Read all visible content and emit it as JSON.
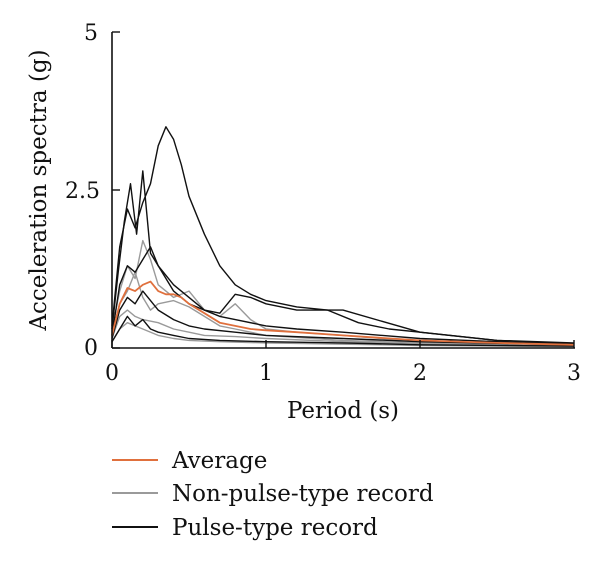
{
  "chart_data": {
    "type": "line",
    "xlabel": "Period (s)",
    "ylabel": "Acceleration spectra (g)",
    "xlim": [
      0,
      3
    ],
    "ylim": [
      0,
      5
    ],
    "x_ticks": [
      "0",
      "1",
      "2",
      "3"
    ],
    "y_ticks": [
      "0",
      "2.5",
      "5"
    ],
    "grid": false,
    "legend_position": "bottom-left below plot",
    "legend": [
      {
        "label": "Average",
        "color": "#e0703d"
      },
      {
        "label": "Non-pulse-type record",
        "color": "#9a9a9a"
      },
      {
        "label": "Pulse-type record",
        "color": "#111111"
      }
    ],
    "series": [
      {
        "group": "pulse",
        "color": "#111111",
        "x": [
          0,
          0.05,
          0.1,
          0.15,
          0.2,
          0.25,
          0.3,
          0.35,
          0.4,
          0.45,
          0.5,
          0.6,
          0.7,
          0.8,
          0.9,
          1.0,
          1.2,
          1.4,
          1.6,
          1.8,
          2.0,
          2.5,
          3.0
        ],
        "y": [
          0.35,
          1.6,
          2.2,
          1.9,
          2.3,
          2.6,
          3.2,
          3.5,
          3.3,
          2.9,
          2.4,
          1.8,
          1.3,
          1.0,
          0.85,
          0.75,
          0.65,
          0.6,
          0.4,
          0.3,
          0.25,
          0.12,
          0.08
        ]
      },
      {
        "group": "pulse",
        "color": "#111111",
        "x": [
          0,
          0.04,
          0.08,
          0.12,
          0.16,
          0.2,
          0.25,
          0.3,
          0.4,
          0.5,
          0.6,
          0.7,
          0.8,
          0.9,
          1.0,
          1.2,
          1.5,
          2.0,
          2.5,
          3.0
        ],
        "y": [
          0.3,
          1.2,
          2.0,
          2.6,
          1.8,
          2.8,
          1.5,
          1.3,
          1.0,
          0.8,
          0.6,
          0.55,
          0.85,
          0.8,
          0.7,
          0.6,
          0.6,
          0.25,
          0.12,
          0.06
        ]
      },
      {
        "group": "pulse",
        "color": "#111111",
        "x": [
          0,
          0.05,
          0.1,
          0.15,
          0.2,
          0.25,
          0.3,
          0.4,
          0.5,
          0.6,
          0.7,
          0.8,
          1.0,
          1.2,
          1.5,
          2.0,
          2.5,
          3.0
        ],
        "y": [
          0.2,
          1.0,
          1.3,
          1.2,
          1.4,
          1.6,
          1.3,
          0.9,
          0.7,
          0.6,
          0.5,
          0.45,
          0.35,
          0.3,
          0.25,
          0.15,
          0.1,
          0.05
        ]
      },
      {
        "group": "pulse",
        "color": "#111111",
        "x": [
          0,
          0.05,
          0.1,
          0.15,
          0.2,
          0.25,
          0.3,
          0.4,
          0.5,
          0.6,
          0.8,
          1.0,
          1.5,
          2.0,
          3.0
        ],
        "y": [
          0.15,
          0.6,
          0.8,
          0.7,
          0.9,
          0.75,
          0.6,
          0.45,
          0.35,
          0.3,
          0.25,
          0.2,
          0.15,
          0.1,
          0.05
        ]
      },
      {
        "group": "pulse",
        "color": "#111111",
        "x": [
          0,
          0.05,
          0.1,
          0.15,
          0.2,
          0.25,
          0.3,
          0.4,
          0.5,
          0.7,
          1.0,
          1.5,
          2.0,
          3.0
        ],
        "y": [
          0.1,
          0.3,
          0.5,
          0.35,
          0.45,
          0.3,
          0.25,
          0.2,
          0.15,
          0.12,
          0.1,
          0.08,
          0.05,
          0.03
        ]
      },
      {
        "group": "non-pulse",
        "color": "#9a9a9a",
        "x": [
          0,
          0.05,
          0.1,
          0.15,
          0.2,
          0.25,
          0.3,
          0.35,
          0.4,
          0.5,
          0.6,
          0.7,
          0.8,
          0.9,
          1.0,
          1.2,
          1.5,
          2.0,
          2.5,
          3.0
        ],
        "y": [
          0.3,
          0.9,
          1.3,
          1.1,
          1.7,
          1.4,
          1.0,
          0.9,
          0.8,
          0.9,
          0.6,
          0.5,
          0.7,
          0.45,
          0.3,
          0.25,
          0.2,
          0.1,
          0.07,
          0.05
        ]
      },
      {
        "group": "non-pulse",
        "color": "#9a9a9a",
        "x": [
          0,
          0.05,
          0.1,
          0.15,
          0.2,
          0.25,
          0.3,
          0.4,
          0.5,
          0.6,
          0.7,
          0.8,
          1.0,
          1.5,
          2.0,
          3.0
        ],
        "y": [
          0.2,
          0.7,
          0.9,
          1.2,
          0.8,
          0.6,
          0.7,
          0.75,
          0.65,
          0.5,
          0.35,
          0.3,
          0.2,
          0.12,
          0.08,
          0.04
        ]
      },
      {
        "group": "non-pulse",
        "color": "#9a9a9a",
        "x": [
          0,
          0.05,
          0.1,
          0.15,
          0.2,
          0.3,
          0.4,
          0.5,
          0.6,
          0.8,
          1.0,
          1.5,
          2.0,
          3.0
        ],
        "y": [
          0.15,
          0.5,
          0.6,
          0.5,
          0.45,
          0.4,
          0.3,
          0.25,
          0.2,
          0.18,
          0.15,
          0.1,
          0.06,
          0.03
        ]
      },
      {
        "group": "non-pulse",
        "color": "#9a9a9a",
        "x": [
          0,
          0.05,
          0.1,
          0.15,
          0.2,
          0.3,
          0.4,
          0.5,
          0.7,
          1.0,
          1.5,
          2.0,
          3.0
        ],
        "y": [
          0.1,
          0.3,
          0.4,
          0.35,
          0.3,
          0.2,
          0.15,
          0.12,
          0.1,
          0.08,
          0.06,
          0.04,
          0.02
        ]
      },
      {
        "group": "average",
        "color": "#e0703d",
        "x": [
          0,
          0.05,
          0.1,
          0.15,
          0.2,
          0.25,
          0.3,
          0.35,
          0.4,
          0.45,
          0.5,
          0.6,
          0.7,
          0.8,
          0.9,
          1.0,
          1.2,
          1.5,
          2.0,
          2.5,
          3.0
        ],
        "y": [
          0.2,
          0.7,
          0.95,
          0.9,
          1.0,
          1.05,
          0.9,
          0.85,
          0.85,
          0.8,
          0.7,
          0.55,
          0.4,
          0.35,
          0.3,
          0.28,
          0.25,
          0.2,
          0.12,
          0.08,
          0.05
        ]
      }
    ]
  }
}
